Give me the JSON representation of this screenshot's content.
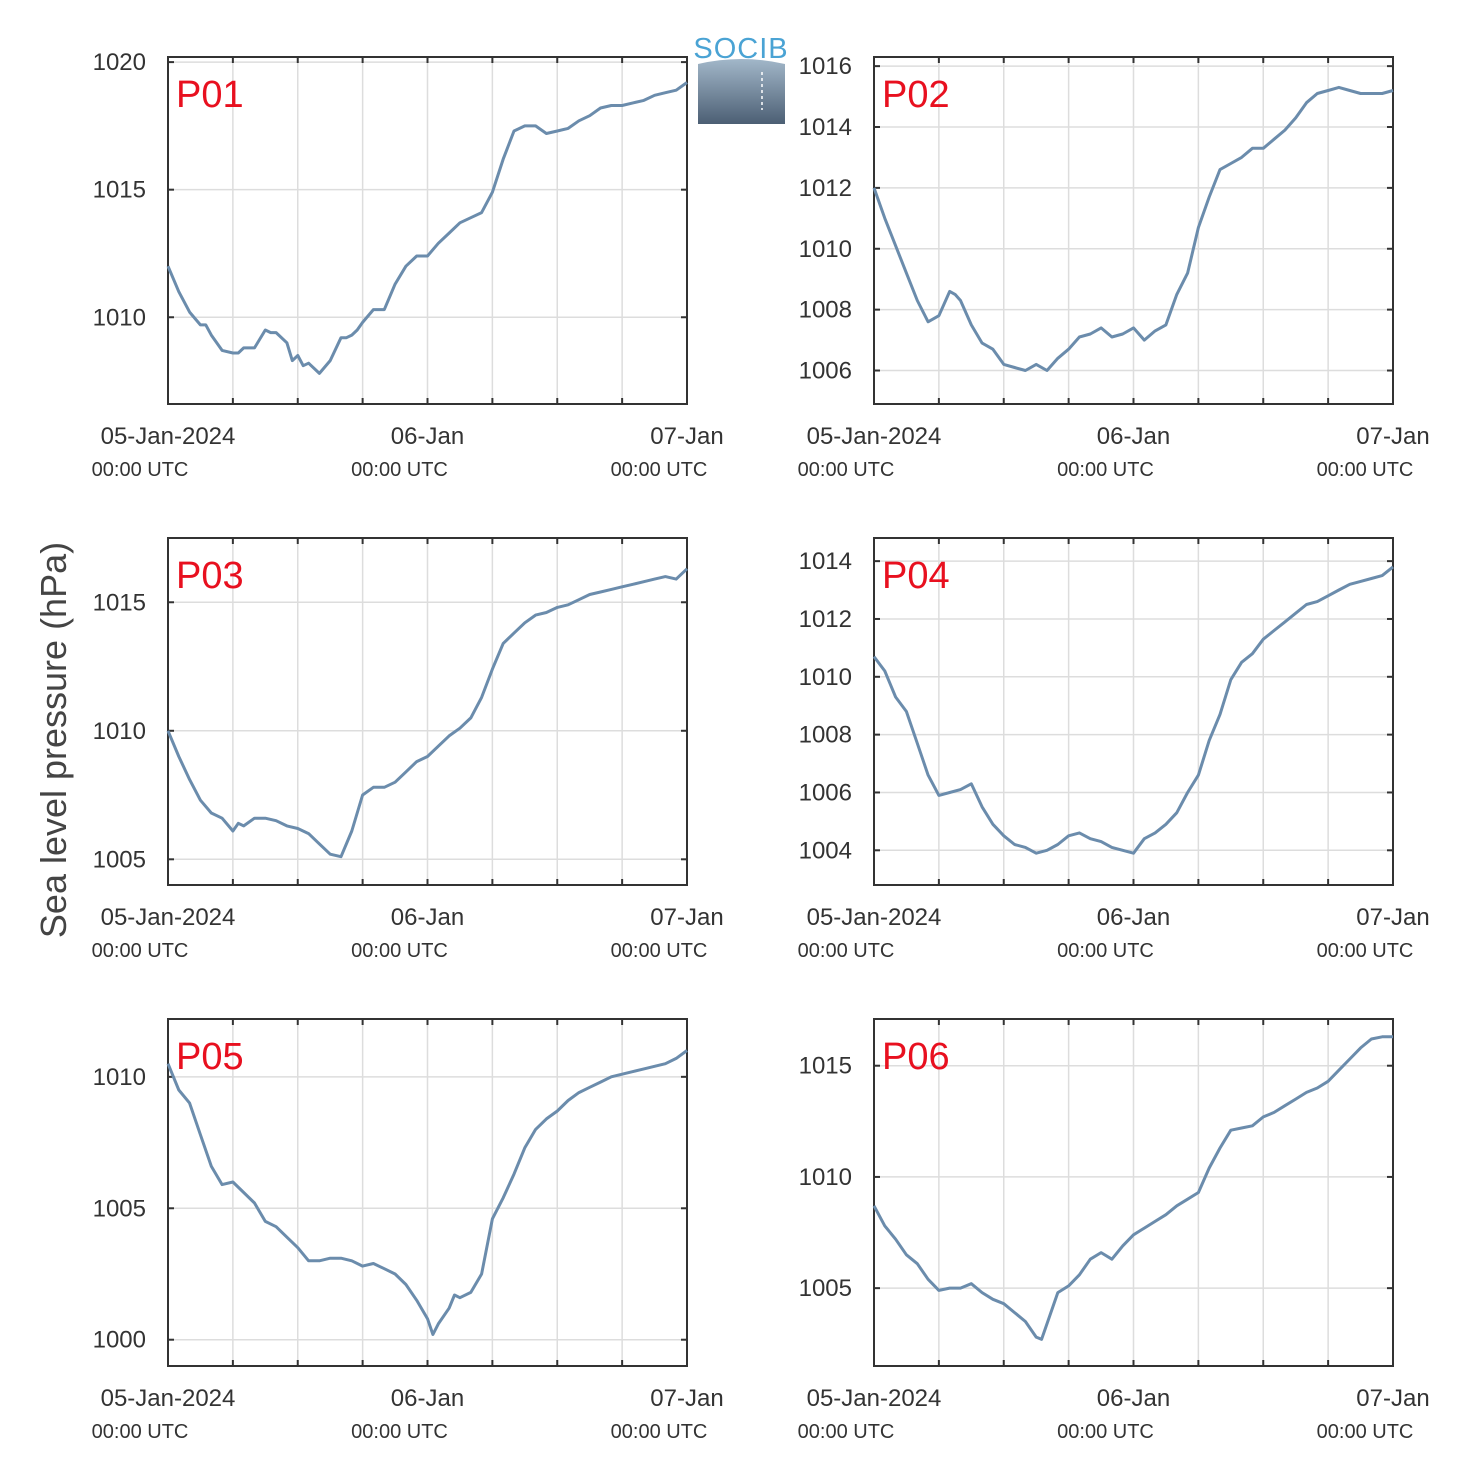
{
  "figure": {
    "ylabel": "Sea level pressure (hPa)",
    "logo_text": "SOCIB",
    "line_color": "#6b8cac",
    "title_color": "#e8101f"
  },
  "x_axis": {
    "start": "2024-01-05T00:00:00Z",
    "end": "2024-01-07T00:00:00Z",
    "grid_hours": 6,
    "labels": [
      {
        "hour": 0,
        "date": "05-Jan-2024",
        "time": "00:00 UTC"
      },
      {
        "hour": 24,
        "date": "06-Jan",
        "time": "00:00 UTC"
      },
      {
        "hour": 48,
        "date": "07-Jan",
        "time": "00:00 UTC"
      }
    ]
  },
  "chart_data": [
    {
      "type": "line",
      "title": "P01",
      "xlabel": "",
      "ylabel": "",
      "ylim": [
        1006.6,
        1020.2
      ],
      "yticks": [
        1010,
        1015,
        1020
      ],
      "grid": true,
      "series": [
        {
          "x": [
            0,
            1,
            2,
            3,
            3.5,
            4,
            5,
            6,
            6.5,
            7,
            8,
            9,
            9.5,
            10,
            11,
            11.5,
            12,
            12.5,
            13,
            14,
            15,
            16,
            16.5,
            17,
            17.5,
            18,
            19,
            20,
            21,
            22,
            23,
            24,
            25,
            26,
            27,
            28,
            29,
            30,
            31,
            32,
            33,
            34,
            35,
            36,
            37,
            38,
            39,
            40,
            41,
            42,
            43,
            44,
            45,
            46,
            47,
            48
          ],
          "values": [
            1012,
            1011,
            1010.2,
            1009.7,
            1009.7,
            1009.3,
            1008.7,
            1008.6,
            1008.6,
            1008.8,
            1008.8,
            1009.5,
            1009.4,
            1009.4,
            1009,
            1008.3,
            1008.5,
            1008.1,
            1008.2,
            1007.8,
            1008.3,
            1009.2,
            1009.2,
            1009.3,
            1009.5,
            1009.8,
            1010.3,
            1010.3,
            1011.3,
            1012,
            1012.4,
            1012.4,
            1012.9,
            1013.3,
            1013.7,
            1013.9,
            1014.1,
            1014.9,
            1016.2,
            1017.3,
            1017.5,
            1017.5,
            1017.2,
            1017.3,
            1017.4,
            1017.7,
            1017.9,
            1018.2,
            1018.3,
            1018.3,
            1018.4,
            1018.5,
            1018.7,
            1018.8,
            1018.9,
            1019.2
          ]
        }
      ]
    },
    {
      "type": "line",
      "title": "P02",
      "xlabel": "",
      "ylabel": "",
      "ylim": [
        1004.9,
        1016.3
      ],
      "yticks": [
        1006,
        1008,
        1010,
        1012,
        1014,
        1016
      ],
      "grid": true,
      "series": [
        {
          "x": [
            0,
            1,
            2,
            3,
            4,
            5,
            6,
            7,
            7.5,
            8,
            9,
            10,
            11,
            12,
            13,
            14,
            15,
            16,
            17,
            18,
            19,
            20,
            21,
            22,
            23,
            24,
            25,
            26,
            27,
            28,
            29,
            30,
            31,
            32,
            33,
            34,
            35,
            36,
            37,
            38,
            39,
            40,
            41,
            42,
            43,
            44,
            45,
            46,
            47,
            48
          ],
          "values": [
            1012,
            1011,
            1010.1,
            1009.2,
            1008.3,
            1007.6,
            1007.8,
            1008.6,
            1008.5,
            1008.3,
            1007.5,
            1006.9,
            1006.7,
            1006.2,
            1006.1,
            1006,
            1006.2,
            1006,
            1006.4,
            1006.7,
            1007.1,
            1007.2,
            1007.4,
            1007.1,
            1007.2,
            1007.4,
            1007,
            1007.3,
            1007.5,
            1008.5,
            1009.2,
            1010.7,
            1011.7,
            1012.6,
            1012.8,
            1013,
            1013.3,
            1013.3,
            1013.6,
            1013.9,
            1014.3,
            1014.8,
            1015.1,
            1015.2,
            1015.3,
            1015.2,
            1015.1,
            1015.1,
            1015.1,
            1015.2
          ]
        }
      ]
    },
    {
      "type": "line",
      "title": "P03",
      "xlabel": "",
      "ylabel": "",
      "ylim": [
        1004,
        1017.5
      ],
      "yticks": [
        1005,
        1010,
        1015
      ],
      "grid": true,
      "series": [
        {
          "x": [
            0,
            1,
            2,
            3,
            4,
            5,
            6,
            6.5,
            7,
            8,
            9,
            10,
            11,
            12,
            13,
            14,
            15,
            16,
            17,
            18,
            19,
            20,
            21,
            22,
            23,
            24,
            25,
            26,
            27,
            28,
            29,
            30,
            31,
            32,
            33,
            34,
            35,
            36,
            37,
            38,
            39,
            40,
            41,
            42,
            43,
            44,
            45,
            46,
            47,
            48
          ],
          "values": [
            1010,
            1009,
            1008.1,
            1007.3,
            1006.8,
            1006.6,
            1006.1,
            1006.4,
            1006.3,
            1006.6,
            1006.6,
            1006.5,
            1006.3,
            1006.2,
            1006,
            1005.6,
            1005.2,
            1005.1,
            1006.1,
            1007.5,
            1007.8,
            1007.8,
            1008,
            1008.4,
            1008.8,
            1009,
            1009.4,
            1009.8,
            1010.1,
            1010.5,
            1011.3,
            1012.4,
            1013.4,
            1013.8,
            1014.2,
            1014.5,
            1014.6,
            1014.8,
            1014.9,
            1015.1,
            1015.3,
            1015.4,
            1015.5,
            1015.6,
            1015.7,
            1015.8,
            1015.9,
            1016,
            1015.9,
            1016.3
          ]
        }
      ]
    },
    {
      "type": "line",
      "title": "P04",
      "xlabel": "",
      "ylabel": "",
      "ylim": [
        1002.8,
        1014.8
      ],
      "yticks": [
        1004,
        1006,
        1008,
        1010,
        1012,
        1014
      ],
      "grid": true,
      "series": [
        {
          "x": [
            0,
            1,
            2,
            3,
            4,
            5,
            6,
            7,
            8,
            9,
            10,
            11,
            12,
            13,
            14,
            15,
            16,
            17,
            18,
            19,
            20,
            21,
            22,
            23,
            24,
            25,
            26,
            27,
            28,
            29,
            30,
            31,
            32,
            33,
            34,
            35,
            36,
            37,
            38,
            39,
            40,
            41,
            42,
            43,
            44,
            45,
            46,
            47,
            48
          ],
          "values": [
            1010.7,
            1010.2,
            1009.3,
            1008.8,
            1007.7,
            1006.6,
            1005.9,
            1006,
            1006.1,
            1006.3,
            1005.5,
            1004.9,
            1004.5,
            1004.2,
            1004.1,
            1003.9,
            1004,
            1004.2,
            1004.5,
            1004.6,
            1004.4,
            1004.3,
            1004.1,
            1004,
            1003.9,
            1004.4,
            1004.6,
            1004.9,
            1005.3,
            1006,
            1006.6,
            1007.8,
            1008.7,
            1009.9,
            1010.5,
            1010.8,
            1011.3,
            1011.6,
            1011.9,
            1012.2,
            1012.5,
            1012.6,
            1012.8,
            1013,
            1013.2,
            1013.3,
            1013.4,
            1013.5,
            1013.8
          ]
        }
      ]
    },
    {
      "type": "line",
      "title": "P05",
      "xlabel": "",
      "ylabel": "",
      "ylim": [
        999,
        1012.2
      ],
      "yticks": [
        1000,
        1005,
        1010
      ],
      "grid": true,
      "series": [
        {
          "x": [
            0,
            1,
            2,
            3,
            4,
            5,
            6,
            7,
            8,
            9,
            10,
            11,
            12,
            13,
            14,
            15,
            16,
            17,
            18,
            19,
            20,
            21,
            22,
            23,
            24,
            24.5,
            25,
            26,
            26.5,
            27,
            28,
            29,
            30,
            31,
            32,
            33,
            34,
            35,
            36,
            37,
            38,
            39,
            40,
            41,
            42,
            43,
            44,
            45,
            46,
            47,
            48
          ],
          "values": [
            1010.5,
            1009.5,
            1009,
            1007.8,
            1006.6,
            1005.9,
            1006,
            1005.6,
            1005.2,
            1004.5,
            1004.3,
            1003.9,
            1003.5,
            1003,
            1003,
            1003.1,
            1003.1,
            1003,
            1002.8,
            1002.9,
            1002.7,
            1002.5,
            1002.1,
            1001.5,
            1000.8,
            1000.2,
            1000.6,
            1001.2,
            1001.7,
            1001.6,
            1001.8,
            1002.5,
            1004.6,
            1005.4,
            1006.3,
            1007.3,
            1008,
            1008.4,
            1008.7,
            1009.1,
            1009.4,
            1009.6,
            1009.8,
            1010,
            1010.1,
            1010.2,
            1010.3,
            1010.4,
            1010.5,
            1010.7,
            1011
          ]
        }
      ]
    },
    {
      "type": "line",
      "title": "P06",
      "xlabel": "",
      "ylabel": "",
      "ylim": [
        1001.5,
        1017.1
      ],
      "yticks": [
        1005,
        1010,
        1015
      ],
      "grid": true,
      "series": [
        {
          "x": [
            0,
            1,
            2,
            3,
            4,
            5,
            6,
            7,
            8,
            9,
            10,
            11,
            12,
            13,
            14,
            15,
            15.5,
            16,
            17,
            18,
            19,
            20,
            21,
            22,
            23,
            24,
            25,
            26,
            27,
            28,
            29,
            30,
            31,
            32,
            33,
            34,
            35,
            36,
            37,
            38,
            39,
            40,
            41,
            42,
            43,
            44,
            45,
            46,
            47,
            48
          ],
          "values": [
            1008.7,
            1007.8,
            1007.2,
            1006.5,
            1006.1,
            1005.4,
            1004.9,
            1005,
            1005,
            1005.2,
            1004.8,
            1004.5,
            1004.3,
            1003.9,
            1003.5,
            1002.8,
            1002.7,
            1003.4,
            1004.8,
            1005.1,
            1005.6,
            1006.3,
            1006.6,
            1006.3,
            1006.9,
            1007.4,
            1007.7,
            1008,
            1008.3,
            1008.7,
            1009,
            1009.3,
            1010.4,
            1011.3,
            1012.1,
            1012.2,
            1012.3,
            1012.7,
            1012.9,
            1013.2,
            1013.5,
            1013.8,
            1014,
            1014.3,
            1014.8,
            1015.3,
            1015.8,
            1016.2,
            1016.3,
            1016.3
          ]
        }
      ]
    }
  ]
}
